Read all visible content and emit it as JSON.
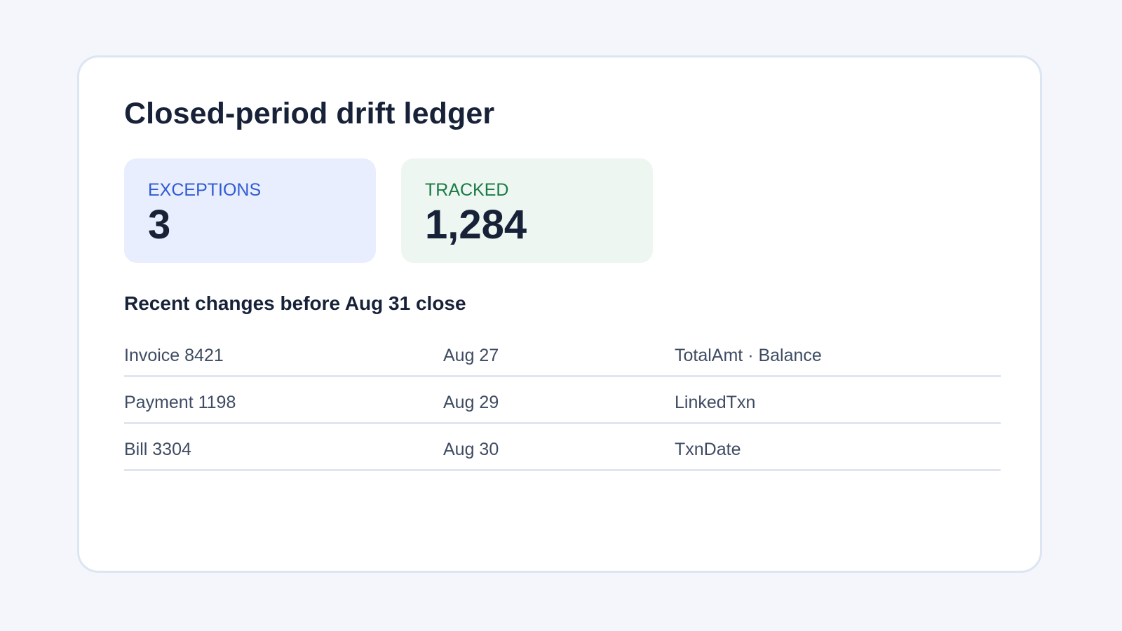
{
  "page": {
    "title": "Closed-period drift ledger"
  },
  "stats": [
    {
      "label": "EXCEPTIONS",
      "value": "3",
      "color": "#2f5bd3",
      "background": "#e8eefd"
    },
    {
      "label": "TRACKED",
      "value": "1,284",
      "color": "#1a7a45",
      "background": "#edf6f0"
    }
  ],
  "changes": {
    "heading": "Recent changes before Aug 31 close",
    "rows": [
      {
        "record": "Invoice 8421",
        "date": "Aug 27",
        "fields": "TotalAmt · Balance"
      },
      {
        "record": "Payment 1198",
        "date": "Aug 29",
        "fields": "LinkedTxn"
      },
      {
        "record": "Bill 3304",
        "date": "Aug 30",
        "fields": "TxnDate"
      }
    ]
  }
}
